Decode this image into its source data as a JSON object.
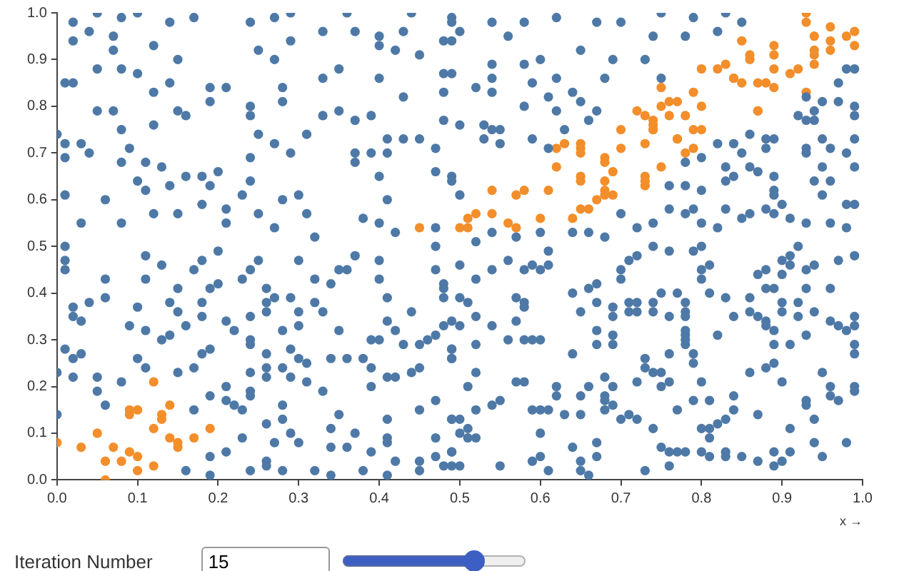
{
  "chart_data": {
    "type": "scatter",
    "xlabel": "x →",
    "xlim": [
      0,
      1
    ],
    "ylim": [
      0,
      1
    ],
    "xticks": [
      {
        "value": 0,
        "label": "0.0"
      },
      0.1,
      0.2,
      0.3,
      0.4,
      0.5,
      0.6,
      0.7,
      0.8,
      0.9,
      {
        "value": 1,
        "label": "1.0"
      }
    ],
    "yticks": [
      {
        "value": 0,
        "label": "0.0"
      },
      0.1,
      0.2,
      0.3,
      0.4,
      0.5,
      0.6,
      0.7,
      0.8,
      0.9,
      {
        "value": 1,
        "label": "1.0"
      }
    ],
    "grid": false,
    "legend": false,
    "marker": "circle",
    "annotations": [
      "Iteration Number",
      "15"
    ],
    "series": [
      {
        "color": "#4e79a7",
        "x": [
          0.05,
          0.08,
          0.1,
          0.02,
          0.02,
          0.14,
          0.17,
          0.12,
          0.04,
          0.07,
          0.07,
          0.15,
          0.01,
          0.02,
          0.05,
          0.08,
          0.1,
          0.14,
          0.12,
          0.19,
          0.19,
          0.21,
          0,
          0.01,
          0.03,
          0.01,
          0.05,
          0.04,
          0.07,
          0.08,
          0.08,
          0.09,
          0.11,
          0.13,
          0.12,
          0.15,
          0.16,
          0.16,
          0.18,
          0.2,
          0.19,
          0.01,
          0.03,
          0.06,
          0.1,
          0.11,
          0.08,
          0.14,
          0.12,
          0.15,
          0.18,
          0.21,
          0.23,
          0.21,
          0.24,
          0.25,
          0.28,
          0.3,
          0.27,
          0.31,
          0.32,
          0.24,
          0.27,
          0.29,
          0.31,
          0.28,
          0.28,
          0.29,
          0.27,
          0.25,
          0.24,
          0.29,
          0.27,
          0.24,
          0.24,
          0.25,
          0.33,
          0.33,
          0.35,
          0.36,
          0.33,
          0.37,
          0.4,
          0.4,
          0.42,
          0.43,
          0.44,
          0.45,
          0.35,
          0.4,
          0.43,
          0.37,
          0.39,
          0.41,
          0.43,
          0.45,
          0.37,
          0.39,
          0.41,
          0.4,
          0.37,
          0.41,
          0.38,
          0.4,
          0.42,
          0.47,
          0.47,
          0.49,
          0.48,
          0.49,
          0.48,
          0.48,
          0.47,
          0.49,
          0.54,
          0.58,
          0.62,
          0.67,
          0.7,
          0.65,
          0.75,
          0.79,
          0.83,
          0.85,
          0.74,
          0.78,
          0.82,
          0.49,
          0.54,
          0.58,
          0.6,
          0.59,
          0.62,
          0.54,
          0.52,
          0.54,
          0.58,
          0.61,
          0.64,
          0.65,
          0.62,
          0.68,
          0.69,
          0.73,
          0.75,
          0.48,
          0.5,
          0.53,
          0.54,
          0.55,
          0.53,
          0.55,
          0.59,
          0.61,
          0.63,
          0.66,
          0.67,
          0.49,
          0.5,
          0.54,
          0.52,
          0.57,
          0.6,
          0.64,
          0.66,
          0.68,
          0.7,
          0.72,
          0.74,
          0.76,
          0.78,
          0.79,
          0.8,
          0.82,
          0.83,
          0.85,
          0.86,
          0.88,
          0.89,
          0.91,
          0.93,
          0.96,
          0.98,
          0.99,
          0.98,
          0.76,
          0.78,
          0.8,
          0.78,
          0.8,
          0.82,
          0.84,
          0.85,
          0.83,
          0.83,
          0.84,
          0.86,
          0.87,
          0.86,
          0.88,
          0.89,
          0.88,
          0.89,
          0.93,
          0.93,
          0.95,
          0.95,
          0.94,
          0.96,
          0.96,
          0.98,
          0.99,
          0.99,
          0.99,
          0.99,
          0.97,
          0.97,
          0.98,
          0.99,
          0.95,
          0.93,
          0.94,
          0.92,
          0.93,
          0.94,
          0.95,
          0.89,
          0.89,
          0.9,
          0.49,
          0.5,
          0.56,
          0.01,
          0.01,
          0.01,
          0.02,
          0.02,
          0.03,
          0.04,
          0.06,
          0.06,
          0.1,
          0.11,
          0.11,
          0.13,
          0.15,
          0.14,
          0.15,
          0.16,
          0.18,
          0.18,
          0.19,
          0.2,
          0.18,
          0.17,
          0.2,
          0.01,
          0.02,
          0.03,
          0,
          0.02,
          0.05,
          0.05,
          0.06,
          0,
          0.08,
          0.09,
          0.11,
          0.1,
          0.11,
          0.13,
          0.14,
          0.15,
          0.17,
          0.18,
          0.19,
          0.17,
          0.19,
          0.21,
          0.22,
          0.21,
          0.21,
          0.22,
          0.23,
          0.21,
          0.19,
          0.19,
          0.16,
          0.23,
          0.24,
          0.24,
          0.24,
          0.24,
          0.24,
          0.24,
          0.26,
          0.26,
          0.26,
          0.23,
          0.24,
          0.25,
          0.27,
          0.29,
          0.3,
          0.3,
          0.28,
          0.26,
          0.26,
          0.26,
          0.28,
          0.29,
          0.3,
          0.29,
          0.31,
          0.31,
          0.26,
          0.28,
          0.28,
          0.27,
          0.29,
          0.3,
          0.26,
          0.26,
          0.28,
          0.24,
          0.32,
          0.34,
          0.34,
          0.34,
          0.35,
          0.33,
          0.36,
          0.37,
          0.38,
          0.39,
          0.39,
          0.41,
          0.41,
          0.41,
          0.42,
          0.41,
          0.45,
          0.45,
          0.47,
          0.47,
          0.48,
          0.49,
          0.49,
          0.45,
          0.47,
          0.36,
          0.34,
          0.38,
          0.39,
          0.41,
          0.42,
          0.44,
          0.45,
          0.43,
          0.39,
          0.4,
          0.42,
          0.44,
          0.41,
          0.41,
          0.45,
          0.46,
          0.47,
          0.48,
          0.49,
          0.49,
          0.47,
          0.48,
          0.48,
          0.47,
          0.4,
          0.4,
          0.37,
          0.36,
          0.35,
          0.34,
          0.32,
          0.32,
          0.33,
          0.35,
          0.3,
          0.49,
          0.5,
          0.49,
          0.51,
          0.5,
          0.51,
          0.52,
          0.49,
          0.5,
          0.52,
          0.54,
          0.55,
          0.55,
          0.51,
          0.52,
          0.57,
          0.58,
          0.59,
          0.6,
          0.6,
          0.59,
          0.6,
          0.61,
          0.61,
          0.62,
          0.62,
          0.63,
          0.64,
          0.65,
          0.65,
          0.66,
          0.67,
          0.67,
          0.65,
          0.65,
          0.66,
          0.68,
          0.68,
          0.68,
          0.69,
          0.69,
          0.68,
          0.7,
          0.71,
          0.72,
          0.73,
          0.74,
          0.75,
          0.76,
          0.76,
          0.77,
          0.78,
          0.8,
          0.81,
          0.77,
          0.79,
          0.81,
          0.8,
          0.81,
          0.81,
          0.82,
          0.83,
          0.83,
          0.83,
          0.84,
          0.84,
          0.85,
          0.87,
          0.87,
          0.89,
          0.89,
          0.9,
          0.91,
          0.91,
          0.93,
          0.93,
          0.94,
          0.94,
          0.95,
          0.95,
          0.96,
          0.96,
          0.97,
          0.98,
          0.99,
          0.99,
          0.88,
          0.89,
          0.9,
          0.86,
          0.8,
          0.76,
          0.75,
          0.75,
          0.74,
          0.73,
          0.73,
          0.72,
          0.76,
          0.79,
          0.79,
          0.78,
          0.78,
          0.78,
          0.78,
          0.82,
          0.78,
          0.78,
          0.78,
          0.77,
          0.76,
          0.74,
          0.74,
          0.75,
          0.72,
          0.72,
          0.71,
          0.71,
          0.69,
          0.69,
          0.69,
          0.69,
          0.67,
          0.67,
          0.67,
          0.65,
          0.66,
          0.67,
          0.7,
          0.7,
          0.64,
          0.64,
          0.71,
          0.72,
          0.74,
          0.76,
          0.79,
          0.8,
          0.81,
          0.8,
          0.8,
          0.81,
          0.83,
          0.84,
          0.86,
          0.86,
          0.87,
          0.88,
          0.88,
          0.89,
          0.89,
          0.91,
          0.93,
          0.92,
          0.94,
          0.93,
          0.92,
          0.9,
          0.9,
          0.89,
          0.88,
          0.87,
          0.88,
          0.9,
          0.9,
          0.91,
          0.91,
          0.93,
          0.92,
          0.94,
          0.97,
          0.99,
          0.96,
          0.96,
          0.97,
          0.99,
          0.99,
          0.98,
          0.99,
          0.99,
          0.48,
          0.5,
          0.5,
          0.49,
          0.49,
          0.49,
          0.5,
          0.52,
          0.51,
          0.52,
          0.54,
          0.54,
          0.52,
          0.56,
          0.57,
          0.56,
          0.58,
          0.57,
          0.58,
          0.58,
          0.59,
          0.58,
          0.6,
          0.61,
          0.61,
          0.6,
          0.59
        ],
        "values": [
          1,
          0.99,
          1,
          0.98,
          0.94,
          0.98,
          0.99,
          0.93,
          0.96,
          0.92,
          0.95,
          0.9,
          0.85,
          0.85,
          0.88,
          0.88,
          0.87,
          0.85,
          0.83,
          0.81,
          0.84,
          0.84,
          0.74,
          0.72,
          0.72,
          0.69,
          0.79,
          0.7,
          0.79,
          0.75,
          0.68,
          0.71,
          0.68,
          0.67,
          0.76,
          0.79,
          0.78,
          0.65,
          0.65,
          0.66,
          0.63,
          0.61,
          0.55,
          0.6,
          0.64,
          0.62,
          0.55,
          0.63,
          0.57,
          0.57,
          0.59,
          0.58,
          0.61,
          0.55,
          0.64,
          0.57,
          0.6,
          0.61,
          0.54,
          0.57,
          0.52,
          0.69,
          0.72,
          0.7,
          0.74,
          0.81,
          0.84,
          0.94,
          0.9,
          0.92,
          0.98,
          1,
          0.99,
          0.8,
          0.78,
          0.74,
          0.78,
          0.86,
          0.79,
          1,
          0.96,
          0.96,
          0.95,
          0.93,
          0.92,
          0.96,
          1,
          0.91,
          0.88,
          0.86,
          0.82,
          0.77,
          0.78,
          0.73,
          0.73,
          0.73,
          0.7,
          0.7,
          0.7,
          0.65,
          0.68,
          0.6,
          0.56,
          0.55,
          0.53,
          0.54,
          0.66,
          0.65,
          0.94,
          0.98,
          0.87,
          0.83,
          0.71,
          0.99,
          0.98,
          0.98,
          0.99,
          0.98,
          0.98,
          0.92,
          1,
          0.99,
          1,
          0.98,
          0.95,
          0.95,
          0.96,
          0.87,
          0.89,
          0.89,
          0.9,
          0.85,
          0.86,
          0.86,
          0.84,
          0.83,
          0.8,
          0.82,
          0.83,
          0.81,
          0.79,
          0.86,
          0.9,
          0.9,
          0.86,
          0.77,
          0.76,
          0.76,
          0.75,
          0.75,
          0.73,
          0.72,
          0.73,
          0.71,
          0.75,
          0.77,
          0.79,
          0.64,
          0.61,
          0.53,
          0.51,
          0.52,
          0.53,
          0.53,
          0.53,
          0.52,
          0.57,
          0.54,
          0.55,
          0.58,
          0.57,
          0.58,
          0.55,
          0.54,
          0.58,
          0.56,
          0.57,
          0.58,
          0.57,
          0.56,
          0.55,
          0.55,
          0.59,
          0.59,
          0.54,
          0.63,
          0.63,
          0.62,
          0.68,
          0.69,
          0.72,
          0.72,
          0.7,
          0.67,
          0.64,
          0.65,
          0.67,
          0.66,
          0.74,
          0.73,
          0.73,
          0.71,
          0.65,
          0.71,
          0.7,
          0.73,
          0.67,
          0.64,
          0.64,
          0.71,
          0.7,
          0.67,
          0.73,
          0.78,
          0.8,
          0.81,
          0.85,
          0.88,
          0.88,
          0.81,
          0.82,
          0.79,
          0.78,
          0.77,
          0.77,
          0.61,
          0.61,
          0.62,
          0.59,
          0.94,
          0.96,
          0.95,
          0.5,
          0.47,
          0.45,
          0.37,
          0.35,
          0.34,
          0.38,
          0.39,
          0.43,
          0.37,
          0.43,
          0.48,
          0.46,
          0.41,
          0.38,
          0.36,
          0.33,
          0.35,
          0.38,
          0.41,
          0.42,
          0.47,
          0.45,
          0.49,
          0.28,
          0.26,
          0.27,
          0.23,
          0.22,
          0.22,
          0.19,
          0.16,
          0.14,
          0.21,
          0.33,
          0.32,
          0.26,
          0.24,
          0.3,
          0.31,
          0.23,
          0.24,
          0.27,
          0.28,
          0.15,
          0.18,
          0.34,
          0.32,
          0.2,
          0.17,
          0.16,
          0.15,
          0.06,
          0.05,
          0.01,
          0.02,
          0.09,
          0.19,
          0.18,
          0.23,
          0.29,
          0.3,
          0.35,
          0.36,
          0.38,
          0.41,
          0.43,
          0.45,
          0.47,
          0.39,
          0.39,
          0.36,
          0.33,
          0.32,
          0.27,
          0.24,
          0.22,
          0.24,
          0.28,
          0.26,
          0.22,
          0.21,
          0.25,
          0.12,
          0.13,
          0.16,
          0.08,
          0.1,
          0.08,
          0.04,
          0.03,
          0.02,
          0.02,
          0.02,
          0.01,
          0.07,
          0.11,
          0.14,
          0.19,
          0.07,
          0.1,
          0.02,
          0.06,
          0.2,
          0.13,
          0.09,
          0.08,
          0.04,
          0.01,
          0.02,
          0.04,
          0.09,
          0.05,
          0.03,
          0.06,
          0.13,
          0.15,
          0.17,
          0.26,
          0.26,
          0.26,
          0.24,
          0.22,
          0.22,
          0.23,
          0.24,
          0.29,
          0.3,
          0.3,
          0.32,
          0.36,
          0.39,
          0.34,
          0.29,
          0.3,
          0.31,
          0.33,
          0.28,
          0.26,
          0.45,
          0.42,
          0.39,
          0.5,
          0.47,
          0.43,
          0.48,
          0.45,
          0.45,
          0.42,
          0.43,
          0.38,
          0.36,
          0.32,
          0.47,
          0.03,
          0.03,
          0.06,
          0.09,
          0.1,
          0.11,
          0.09,
          0.13,
          0.13,
          0.15,
          0.16,
          0.17,
          0.03,
          0.2,
          0.23,
          0.21,
          0.21,
          0.15,
          0.15,
          0.1,
          0.04,
          0.05,
          0.02,
          0.15,
          0.18,
          0.2,
          0.14,
          0.07,
          0.04,
          0.02,
          0.01,
          0.05,
          0.08,
          0.14,
          0.18,
          0.2,
          0.17,
          0.18,
          0.22,
          0.2,
          0.16,
          0.15,
          0.13,
          0.14,
          0.13,
          0.02,
          0.11,
          0.07,
          0.06,
          0.03,
          0.06,
          0.06,
          0.06,
          0.05,
          0.15,
          0.17,
          0.17,
          0.11,
          0.11,
          0.09,
          0.12,
          0.05,
          0.06,
          0.13,
          0.18,
          0.15,
          0.05,
          0.04,
          0.14,
          0.03,
          0.06,
          0.04,
          0.11,
          0.06,
          0.17,
          0.16,
          0.13,
          0.08,
          0.05,
          0.23,
          0.2,
          0.18,
          0.17,
          0.08,
          0.2,
          0.19,
          0.24,
          0.25,
          0.21,
          0.23,
          0.21,
          0.21,
          0.2,
          0.23,
          0.23,
          0.24,
          0.26,
          0.21,
          0.27,
          0.27,
          0.25,
          0.3,
          0.29,
          0.31,
          0.32,
          0.31,
          0.36,
          0.35,
          0.38,
          0.4,
          0.35,
          0.36,
          0.38,
          0.4,
          0.38,
          0.36,
          0.36,
          0.38,
          0.35,
          0.37,
          0.31,
          0.29,
          0.29,
          0.32,
          0.38,
          0.36,
          0.41,
          0.42,
          0.43,
          0.45,
          0.4,
          0.27,
          0.47,
          0.48,
          0.5,
          0.49,
          0.49,
          0.5,
          0.46,
          0.45,
          0.43,
          0.4,
          0.39,
          0.35,
          0.39,
          0.36,
          0.35,
          0.34,
          0.33,
          0.32,
          0.29,
          0.29,
          0.31,
          0.35,
          0.36,
          0.41,
          0.38,
          0.36,
          0.38,
          0.41,
          0.41,
          0.44,
          0.45,
          0.44,
          0.47,
          0.48,
          0.46,
          0.45,
          0.5,
          0.46,
          0.47,
          0.48,
          0.41,
          0.34,
          0.33,
          0.35,
          0.33,
          0.32,
          0.29,
          0.27,
          0.41,
          0.39,
          0.33,
          0.34,
          0.28,
          0.26,
          0.46,
          0.43,
          0.38,
          0.35,
          0.45,
          0.33,
          0.29,
          0.3,
          0.39,
          0.47,
          0.45,
          0.34,
          0.3,
          0.38,
          0.3,
          0.37,
          0.45,
          0.46,
          0.49,
          0.3,
          0.46
        ]
      },
      {
        "color": "#f28e2b",
        "x": [
          0.93,
          0.93,
          0.96,
          0.99,
          0.98,
          0.99,
          0.94,
          0.96,
          0.94,
          0.96,
          0.94,
          0.94,
          0.91,
          0.93,
          0.89,
          0.89,
          0.85,
          0.86,
          0.86,
          0.89,
          0.83,
          0.82,
          0.8,
          0.84,
          0.84,
          0.85,
          0.87,
          0.88,
          0.89,
          0.92,
          0.87,
          0.87,
          0.75,
          0.79,
          0.76,
          0.77,
          0.75,
          0.8,
          0.76,
          0.78,
          0.72,
          0.73,
          0.74,
          0.74,
          0.74,
          0.74,
          0.7,
          0.79,
          0.8,
          0.77,
          0.77,
          0.73,
          0.79,
          0.78,
          0.7,
          0.65,
          0.65,
          0.65,
          0.63,
          0.62,
          0.62,
          0.68,
          0.68,
          0.69,
          0.75,
          0.65,
          0.65,
          0.68,
          0.73,
          0.73,
          0.73,
          0.68,
          0.69,
          0.68,
          0.67,
          0.65,
          0.66,
          0.64,
          0.61,
          0.58,
          0.57,
          0.54,
          0.6,
          0.56,
          0.57,
          0.54,
          0.52,
          0.51,
          0.51,
          0.5,
          0.45,
          0.12,
          0,
          0.03,
          0.05,
          0.06,
          0.06,
          0.07,
          0.08,
          0.09,
          0.09,
          0.09,
          0.1,
          0.1,
          0.1,
          0.12,
          0.12,
          0.13,
          0.13,
          0.14,
          0.14,
          0.15,
          0.15,
          0.17,
          0.19
        ],
        "values": [
          1,
          0.98,
          0.97,
          0.96,
          0.95,
          0.93,
          0.95,
          0.94,
          0.92,
          0.92,
          0.91,
          0.89,
          0.87,
          0.83,
          0.93,
          0.91,
          0.94,
          0.9,
          0.91,
          0.88,
          0.89,
          0.88,
          0.88,
          0.86,
          0.86,
          0.85,
          0.85,
          0.85,
          0.84,
          0.88,
          0.79,
          0.79,
          0.84,
          0.83,
          0.81,
          0.81,
          0.8,
          0.8,
          0.78,
          0.78,
          0.79,
          0.78,
          0.77,
          0.76,
          0.75,
          0.75,
          0.75,
          0.75,
          0.75,
          0.73,
          0.73,
          0.72,
          0.71,
          0.7,
          0.71,
          0.72,
          0.71,
          0.7,
          0.72,
          0.71,
          0.67,
          0.69,
          0.68,
          0.66,
          0.67,
          0.65,
          0.64,
          0.64,
          0.65,
          0.64,
          0.63,
          0.62,
          0.61,
          0.61,
          0.6,
          0.58,
          0.58,
          0.56,
          0.62,
          0.62,
          0.61,
          0.62,
          0.56,
          0.55,
          0.54,
          0.57,
          0.57,
          0.56,
          0.54,
          0.54,
          0.54,
          0.21,
          0.08,
          0.07,
          0.1,
          0.04,
          0,
          0.07,
          0.04,
          0.06,
          0.15,
          0.14,
          0.15,
          0.05,
          0.02,
          0.03,
          0.11,
          0.14,
          0.13,
          0.16,
          0.09,
          0.07,
          0.08,
          0.09,
          0.11
        ]
      }
    ]
  }
}
